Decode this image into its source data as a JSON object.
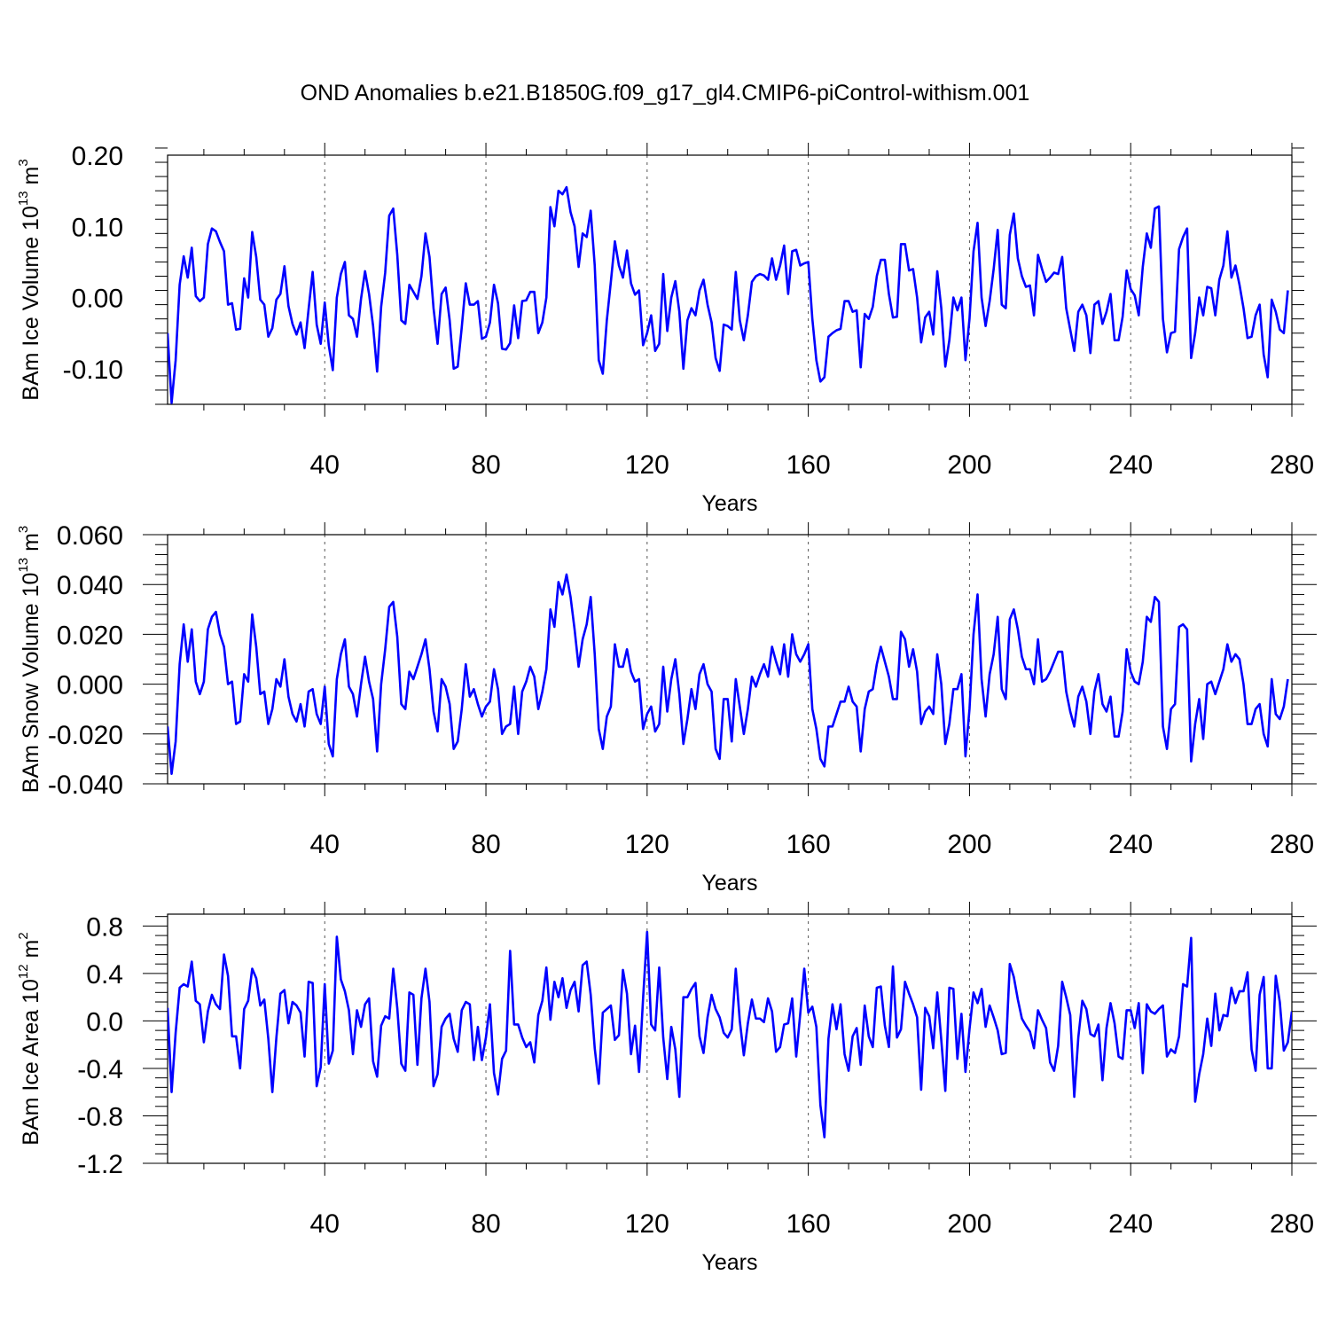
{
  "title": "OND Anomalies b.e21.B1850G.f09_g17_gl4.CMIP6-piControl-withism.001",
  "colors": {
    "line": "#0000ff",
    "axis": "#000000",
    "grid": "#555555"
  },
  "chart_data": [
    {
      "type": "line",
      "name": "ice-volume",
      "xlabel": "Years",
      "ylabel": {
        "prefix": "BAm Ice Volume 10",
        "exp1": "13",
        "mid": " m",
        "exp2": "3"
      },
      "xlim": [
        1,
        280
      ],
      "ylim": [
        -0.15,
        0.2
      ],
      "xticks": [
        40,
        80,
        120,
        160,
        200,
        240,
        280
      ],
      "xtick_labels": [
        "40",
        "80",
        "120",
        "160",
        "200",
        "240",
        "280"
      ],
      "yticks": [
        0.2,
        0.1,
        0.0,
        -0.1
      ],
      "ytick_labels": [
        "0.20",
        "0.10",
        "0.00",
        "-0.10"
      ],
      "grid": "dashed vertical at x ticks",
      "x_start": 1,
      "values": [
        -0.05,
        -0.148,
        -0.088,
        0.018,
        0.058,
        0.028,
        0.07,
        0.002,
        -0.005,
        0.0,
        0.075,
        0.097,
        0.093,
        0.078,
        0.065,
        -0.01,
        -0.008,
        -0.045,
        -0.044,
        0.027,
        0.0,
        0.092,
        0.057,
        -0.003,
        -0.01,
        -0.055,
        -0.043,
        -0.003,
        0.005,
        0.044,
        -0.012,
        -0.037,
        -0.052,
        -0.035,
        -0.071,
        -0.016,
        0.036,
        -0.038,
        -0.065,
        -0.007,
        -0.067,
        -0.102,
        0.0,
        0.033,
        0.05,
        -0.025,
        -0.03,
        -0.055,
        -0.002,
        0.037,
        0.005,
        -0.04,
        -0.104,
        -0.013,
        0.035,
        0.115,
        0.125,
        0.06,
        -0.032,
        -0.037,
        0.018,
        0.008,
        -0.002,
        0.03,
        0.09,
        0.057,
        -0.015,
        -0.065,
        0.005,
        0.014,
        -0.032,
        -0.1,
        -0.097,
        -0.042,
        0.02,
        -0.01,
        -0.01,
        -0.005,
        -0.058,
        -0.055,
        -0.035,
        0.018,
        -0.008,
        -0.072,
        -0.073,
        -0.064,
        -0.011,
        -0.057,
        -0.005,
        -0.004,
        0.008,
        0.008,
        -0.05,
        -0.035,
        0.0,
        0.127,
        0.1,
        0.15,
        0.145,
        0.155,
        0.12,
        0.1,
        0.043,
        0.09,
        0.085,
        0.122,
        0.045,
        -0.088,
        -0.107,
        -0.032,
        0.022,
        0.079,
        0.045,
        0.028,
        0.066,
        0.02,
        0.004,
        0.01,
        -0.067,
        -0.05,
        -0.025,
        -0.075,
        -0.065,
        0.033,
        -0.047,
        0.0,
        0.023,
        -0.02,
        -0.1,
        -0.032,
        -0.015,
        -0.025,
        0.01,
        0.025,
        -0.01,
        -0.035,
        -0.085,
        -0.103,
        -0.038,
        -0.04,
        -0.045,
        0.036,
        -0.032,
        -0.06,
        -0.025,
        0.022,
        0.03,
        0.033,
        0.031,
        0.025,
        0.055,
        0.025,
        0.045,
        0.073,
        0.005,
        0.065,
        0.067,
        0.045,
        0.048,
        0.05,
        -0.03,
        -0.088,
        -0.118,
        -0.112,
        -0.055,
        -0.05,
        -0.046,
        -0.044,
        -0.005,
        -0.005,
        -0.02,
        -0.018,
        -0.098,
        -0.023,
        -0.03,
        -0.013,
        0.03,
        0.053,
        0.053,
        0.005,
        -0.028,
        -0.027,
        0.075,
        0.075,
        0.038,
        0.04,
        0.0,
        -0.063,
        -0.028,
        -0.02,
        -0.052,
        0.037,
        -0.015,
        -0.097,
        -0.06,
        0.0,
        -0.018,
        0.0,
        -0.088,
        -0.03,
        0.065,
        0.105,
        0.0,
        -0.04,
        -0.005,
        0.04,
        0.095,
        -0.01,
        -0.015,
        0.088,
        0.118,
        0.055,
        0.03,
        0.015,
        0.017,
        -0.025,
        0.06,
        0.04,
        0.022,
        0.028,
        0.035,
        0.033,
        0.057,
        -0.015,
        -0.045,
        -0.075,
        -0.02,
        -0.01,
        -0.025,
        -0.078,
        -0.01,
        -0.005,
        -0.037,
        -0.02,
        0.005,
        -0.06,
        -0.06,
        -0.027,
        0.038,
        0.012,
        0.003,
        -0.025,
        0.043,
        0.09,
        0.07,
        0.125,
        0.128,
        -0.03,
        -0.077,
        -0.05,
        -0.048,
        0.068,
        0.085,
        0.097,
        -0.085,
        -0.05,
        0.0,
        -0.025,
        0.015,
        0.013,
        -0.025,
        0.025,
        0.045,
        0.093,
        0.028,
        0.045,
        0.018,
        -0.015,
        -0.057,
        -0.055,
        -0.025,
        -0.01,
        -0.08,
        -0.112,
        -0.003,
        -0.02,
        -0.045,
        -0.05,
        0.01
      ]
    },
    {
      "type": "line",
      "name": "snow-volume",
      "xlabel": "Years",
      "ylabel": {
        "prefix": "BAm Snow Volume 10",
        "exp1": "13",
        "mid": " m",
        "exp2": "3"
      },
      "xlim": [
        1,
        280
      ],
      "ylim": [
        -0.04,
        0.06
      ],
      "xticks": [
        40,
        80,
        120,
        160,
        200,
        240,
        280
      ],
      "xtick_labels": [
        "40",
        "80",
        "120",
        "160",
        "200",
        "240",
        "280"
      ],
      "yticks": [
        0.06,
        0.04,
        0.02,
        0.0,
        -0.02,
        -0.04
      ],
      "ytick_labels": [
        "0.060",
        "0.040",
        "0.020",
        "0.000",
        "-0.020",
        "-0.040"
      ],
      "grid": "dashed vertical at x ticks",
      "x_start": 1,
      "values": [
        -0.017,
        -0.036,
        -0.023,
        0.008,
        0.024,
        0.009,
        0.022,
        0.001,
        -0.004,
        0.001,
        0.022,
        0.027,
        0.029,
        0.02,
        0.015,
        0.0,
        0.001,
        -0.016,
        -0.015,
        0.004,
        0.001,
        0.028,
        0.015,
        -0.004,
        -0.003,
        -0.016,
        -0.01,
        0.002,
        -0.001,
        0.01,
        -0.005,
        -0.012,
        -0.015,
        -0.008,
        -0.017,
        -0.003,
        -0.002,
        -0.012,
        -0.016,
        -0.001,
        -0.024,
        -0.029,
        0.002,
        0.012,
        0.018,
        -0.001,
        -0.004,
        -0.013,
        0.0,
        0.011,
        0.001,
        -0.006,
        -0.027,
        0.0,
        0.014,
        0.031,
        0.033,
        0.019,
        -0.008,
        -0.01,
        0.005,
        0.002,
        0.007,
        0.012,
        0.018,
        0.006,
        -0.011,
        -0.019,
        0.002,
        -0.001,
        -0.008,
        -0.026,
        -0.023,
        -0.01,
        0.008,
        -0.005,
        -0.002,
        -0.008,
        -0.013,
        -0.009,
        -0.007,
        0.006,
        -0.002,
        -0.02,
        -0.017,
        -0.016,
        -0.001,
        -0.02,
        -0.003,
        0.001,
        0.007,
        0.003,
        -0.01,
        -0.003,
        0.006,
        0.03,
        0.023,
        0.041,
        0.036,
        0.044,
        0.035,
        0.022,
        0.007,
        0.018,
        0.024,
        0.035,
        0.012,
        -0.018,
        -0.026,
        -0.013,
        -0.009,
        0.016,
        0.007,
        0.007,
        0.014,
        0.005,
        0.001,
        0.002,
        -0.018,
        -0.012,
        -0.009,
        -0.019,
        -0.016,
        0.007,
        -0.011,
        0.002,
        0.01,
        -0.004,
        -0.024,
        -0.014,
        -0.002,
        -0.01,
        0.004,
        0.008,
        0.0,
        -0.003,
        -0.026,
        -0.03,
        -0.006,
        -0.006,
        -0.023,
        0.002,
        -0.009,
        -0.02,
        -0.01,
        0.003,
        -0.001,
        0.004,
        0.008,
        0.003,
        0.015,
        0.009,
        0.004,
        0.016,
        0.003,
        0.02,
        0.012,
        0.009,
        0.012,
        0.016,
        -0.01,
        -0.018,
        -0.03,
        -0.033,
        -0.017,
        -0.017,
        -0.012,
        -0.007,
        -0.007,
        -0.001,
        -0.007,
        -0.009,
        -0.027,
        -0.01,
        -0.003,
        -0.002,
        0.008,
        0.015,
        0.009,
        0.003,
        -0.006,
        -0.006,
        0.021,
        0.018,
        0.007,
        0.014,
        0.005,
        -0.016,
        -0.011,
        -0.009,
        -0.012,
        0.012,
        0.0,
        -0.024,
        -0.016,
        -0.002,
        -0.002,
        0.004,
        -0.029,
        -0.01,
        0.02,
        0.036,
        0.002,
        -0.013,
        0.004,
        0.012,
        0.027,
        -0.002,
        -0.006,
        0.026,
        0.03,
        0.022,
        0.011,
        0.006,
        0.006,
        0.0,
        0.018,
        0.001,
        0.002,
        0.005,
        0.009,
        0.013,
        0.013,
        -0.003,
        -0.011,
        -0.017,
        -0.005,
        -0.001,
        -0.007,
        -0.02,
        -0.003,
        0.004,
        -0.008,
        -0.011,
        -0.005,
        -0.021,
        -0.021,
        -0.011,
        0.014,
        0.005,
        0.001,
        -0.0,
        0.009,
        0.027,
        0.025,
        0.035,
        0.033,
        -0.017,
        -0.026,
        -0.01,
        -0.008,
        0.023,
        0.024,
        0.022,
        -0.031,
        -0.016,
        -0.006,
        -0.022,
        0.0,
        0.001,
        -0.004,
        0.001,
        0.006,
        0.016,
        0.009,
        0.012,
        0.01,
        0.0,
        -0.016,
        -0.016,
        -0.01,
        -0.008,
        -0.02,
        -0.025,
        0.002,
        -0.012,
        -0.014,
        -0.009,
        0.002
      ]
    },
    {
      "type": "line",
      "name": "ice-area",
      "xlabel": "Years",
      "ylabel": {
        "prefix": "BAm Ice Area 10",
        "exp1": "12",
        "mid": " m",
        "exp2": "2"
      },
      "xlim": [
        1,
        280
      ],
      "ylim": [
        -1.2,
        0.9
      ],
      "xticks": [
        40,
        80,
        120,
        160,
        200,
        240,
        280
      ],
      "xtick_labels": [
        "40",
        "80",
        "120",
        "160",
        "200",
        "240",
        "280"
      ],
      "yticks": [
        0.8,
        0.4,
        0.0,
        -0.4,
        -0.8,
        -1.2
      ],
      "ytick_labels": [
        "0.8",
        "0.4",
        "0.0",
        "-0.4",
        "-0.8",
        "-1.2"
      ],
      "grid": "dashed vertical at x ticks",
      "x_start": 1,
      "values": [
        0.11,
        -0.6,
        -0.1,
        0.28,
        0.31,
        0.29,
        0.5,
        0.17,
        0.14,
        -0.18,
        0.08,
        0.22,
        0.14,
        0.1,
        0.56,
        0.38,
        -0.13,
        -0.13,
        -0.4,
        0.1,
        0.17,
        0.44,
        0.36,
        0.13,
        0.18,
        -0.15,
        -0.6,
        -0.14,
        0.23,
        0.26,
        -0.02,
        0.16,
        0.13,
        0.07,
        -0.3,
        0.33,
        0.32,
        -0.55,
        -0.39,
        0.31,
        -0.36,
        -0.25,
        0.71,
        0.35,
        0.25,
        0.09,
        -0.28,
        0.09,
        -0.05,
        0.14,
        0.19,
        -0.34,
        -0.47,
        -0.04,
        0.04,
        0.02,
        0.44,
        0.11,
        -0.36,
        -0.42,
        0.24,
        0.22,
        -0.37,
        0.19,
        0.44,
        0.16,
        -0.55,
        -0.45,
        -0.05,
        0.02,
        0.06,
        -0.15,
        -0.26,
        0.09,
        0.16,
        0.14,
        -0.33,
        -0.05,
        -0.33,
        -0.14,
        0.14,
        -0.44,
        -0.62,
        -0.32,
        -0.25,
        0.59,
        -0.03,
        -0.03,
        -0.14,
        -0.22,
        -0.18,
        -0.35,
        0.05,
        0.17,
        0.45,
        0.01,
        0.33,
        0.2,
        0.36,
        0.11,
        0.26,
        0.33,
        0.08,
        0.47,
        0.5,
        0.22,
        -0.23,
        -0.53,
        0.07,
        0.1,
        0.13,
        -0.16,
        -0.12,
        0.43,
        0.23,
        -0.28,
        -0.04,
        -0.43,
        0.19,
        0.75,
        -0.03,
        -0.08,
        0.45,
        -0.14,
        -0.49,
        -0.05,
        -0.24,
        -0.64,
        0.2,
        0.2,
        0.27,
        0.32,
        -0.13,
        -0.27,
        0.03,
        0.22,
        0.1,
        0.03,
        -0.1,
        -0.14,
        -0.07,
        0.44,
        0.0,
        -0.29,
        -0.02,
        0.18,
        0.02,
        0.02,
        -0.01,
        0.19,
        0.08,
        -0.26,
        -0.22,
        -0.03,
        -0.02,
        0.19,
        -0.3,
        0.06,
        0.44,
        0.07,
        0.12,
        -0.05,
        -0.71,
        -0.98,
        -0.15,
        0.14,
        -0.07,
        0.14,
        -0.28,
        -0.42,
        -0.13,
        -0.06,
        -0.37,
        0.13,
        -0.13,
        -0.22,
        0.28,
        0.29,
        -0.04,
        -0.22,
        0.46,
        -0.14,
        -0.07,
        0.33,
        0.23,
        0.14,
        0.03,
        -0.58,
        0.11,
        0.04,
        -0.23,
        0.24,
        -0.16,
        -0.59,
        0.28,
        0.27,
        -0.32,
        0.06,
        -0.43,
        -0.07,
        0.24,
        0.15,
        0.27,
        -0.05,
        0.13,
        0.03,
        -0.08,
        -0.28,
        -0.27,
        0.48,
        0.37,
        0.18,
        0.02,
        -0.04,
        -0.09,
        -0.23,
        0.09,
        0.01,
        -0.06,
        -0.35,
        -0.42,
        -0.21,
        0.33,
        0.2,
        0.05,
        -0.64,
        -0.14,
        0.17,
        0.1,
        -0.11,
        -0.13,
        -0.03,
        -0.5,
        -0.06,
        0.15,
        -0.02,
        -0.3,
        -0.32,
        0.09,
        0.09,
        -0.06,
        0.15,
        -0.44,
        0.14,
        0.08,
        0.06,
        0.1,
        0.13,
        -0.3,
        -0.24,
        -0.27,
        -0.13,
        0.31,
        0.29,
        0.7,
        -0.68,
        -0.45,
        -0.28,
        0.02,
        -0.21,
        0.23,
        -0.08,
        0.05,
        0.04,
        0.28,
        0.15,
        0.25,
        0.25,
        0.41,
        -0.24,
        -0.42,
        0.22,
        0.37,
        -0.4,
        -0.4,
        0.38,
        0.16,
        -0.25,
        -0.18,
        0.08
      ]
    }
  ]
}
